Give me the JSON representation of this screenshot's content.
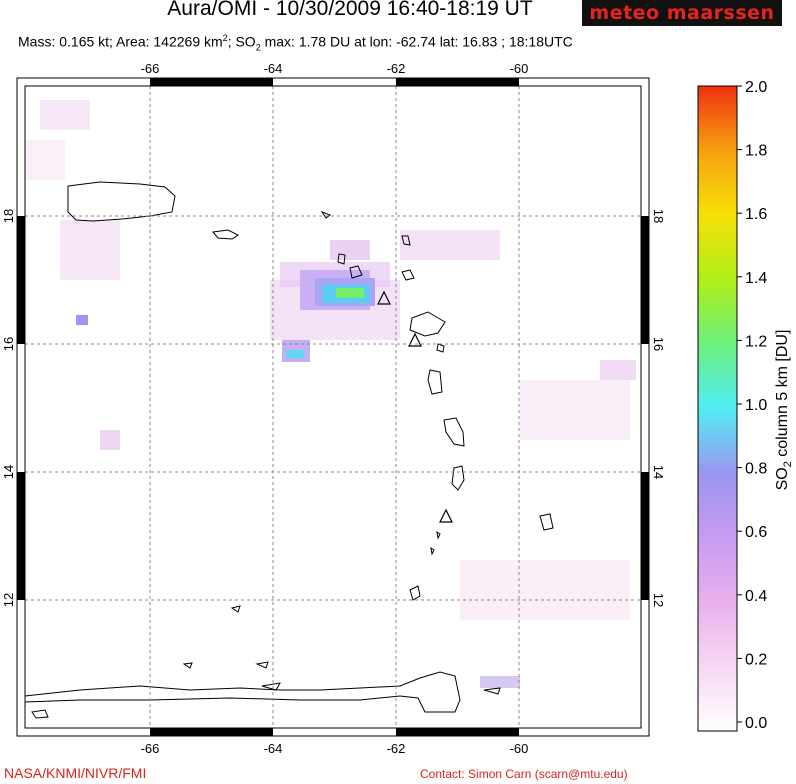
{
  "header": {
    "title": "Aura/OMI - 10/30/2009 16:40-18:19 UT",
    "logo_text": "meteo maarssen",
    "stats_prefix": "Mass: 0.165 kt; Area: 142269 km",
    "stats_mid": "; SO",
    "stats_suffix": " max: 1.78 DU at lon: -62.74 lat: 16.83 ; 18:18UTC",
    "sup": "2",
    "sub": "2"
  },
  "map": {
    "lon_ticks": [
      "-66",
      "-64",
      "-62",
      "-60"
    ],
    "lat_ticks": [
      "18",
      "16",
      "14",
      "12"
    ],
    "lon_range": [
      -68,
      -58
    ],
    "lat_range": [
      10,
      20
    ],
    "grid": true,
    "volcano_markers": 4
  },
  "colorbar": {
    "ticks": [
      "2.0",
      "1.8",
      "1.6",
      "1.4",
      "1.2",
      "1.0",
      "0.8",
      "0.6",
      "0.4",
      "0.2",
      "0.0"
    ],
    "label_main": "SO",
    "label_sub": "2",
    "label_rest": " column 5 km [DU]",
    "range": [
      0,
      2
    ],
    "colors": [
      "#ffffff",
      "#f6d8f2",
      "#e8b0ee",
      "#c89af0",
      "#9a96f2",
      "#6ab0f6",
      "#52ecf4",
      "#6cf07c",
      "#b0ee18",
      "#f6e008",
      "#f6a010",
      "#f03012"
    ]
  },
  "footer": {
    "credit": "NASA/KNMI/NIVR/FMI",
    "contact": "Contact: Simon Carn (scarn@mtu.edu)"
  }
}
